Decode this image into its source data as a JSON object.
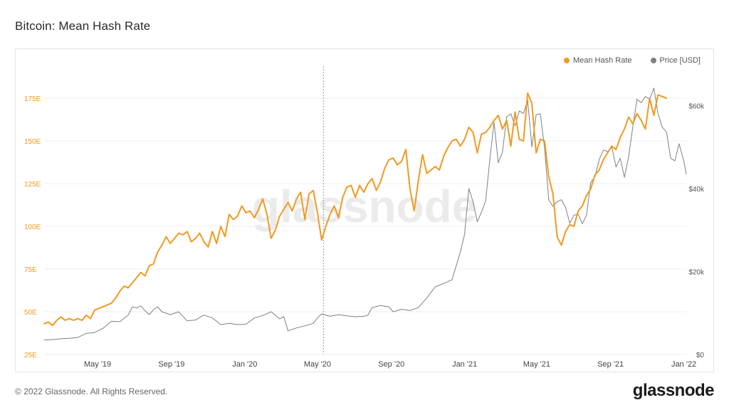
{
  "title": "Bitcoin: Mean Hash Rate",
  "footer": {
    "copyright": "© 2022 Glassnode. All Rights Reserved.",
    "logo": "glassnode"
  },
  "watermark": "glassnode",
  "colors": {
    "hash": "#f09a22",
    "price": "#808080",
    "grid": "#efefef",
    "left_axis": "#f09a22",
    "right_axis": "#555555"
  },
  "chart_data": {
    "type": "line",
    "title": "Bitcoin: Mean Hash Rate",
    "legend": {
      "position": "top-right"
    },
    "grid": true,
    "x_ticks": [
      "May '19",
      "Sep '19",
      "Jan '20",
      "May '20",
      "Sep '20",
      "Jan '21",
      "May '21",
      "Sep '21",
      "Jan '22"
    ],
    "left_axis": {
      "ticks": [
        "25E",
        "50E",
        "75E",
        "100E",
        "125E",
        "150E",
        "175E"
      ],
      "range": [
        25,
        195
      ]
    },
    "right_axis": {
      "ticks": [
        "$0",
        "$20k",
        "$40k",
        "$60k"
      ],
      "range": [
        0,
        70000
      ]
    },
    "marker_line_date": "2020-05-11",
    "series": [
      {
        "name": "Mean Hash Rate",
        "axis": "left",
        "color": "#f09a22",
        "points": [
          [
            "2019-02-01",
            43
          ],
          [
            "2019-02-08",
            44
          ],
          [
            "2019-02-15",
            42
          ],
          [
            "2019-02-22",
            45
          ],
          [
            "2019-03-01",
            47
          ],
          [
            "2019-03-08",
            45
          ],
          [
            "2019-03-15",
            46
          ],
          [
            "2019-03-22",
            45
          ],
          [
            "2019-03-29",
            46
          ],
          [
            "2019-04-05",
            45
          ],
          [
            "2019-04-12",
            48
          ],
          [
            "2019-04-19",
            46
          ],
          [
            "2019-04-26",
            51
          ],
          [
            "2019-05-03",
            52
          ],
          [
            "2019-05-10",
            53
          ],
          [
            "2019-05-17",
            54
          ],
          [
            "2019-05-24",
            55
          ],
          [
            "2019-05-31",
            58
          ],
          [
            "2019-06-07",
            62
          ],
          [
            "2019-06-14",
            65
          ],
          [
            "2019-06-21",
            64
          ],
          [
            "2019-06-28",
            67
          ],
          [
            "2019-07-05",
            70
          ],
          [
            "2019-07-12",
            73
          ],
          [
            "2019-07-19",
            71
          ],
          [
            "2019-07-26",
            77
          ],
          [
            "2019-08-02",
            78
          ],
          [
            "2019-08-09",
            85
          ],
          [
            "2019-08-16",
            89
          ],
          [
            "2019-08-23",
            94
          ],
          [
            "2019-08-30",
            90
          ],
          [
            "2019-09-06",
            93
          ],
          [
            "2019-09-13",
            96
          ],
          [
            "2019-09-20",
            95
          ],
          [
            "2019-09-27",
            97
          ],
          [
            "2019-10-04",
            91
          ],
          [
            "2019-10-11",
            93
          ],
          [
            "2019-10-18",
            96
          ],
          [
            "2019-10-25",
            91
          ],
          [
            "2019-11-01",
            88
          ],
          [
            "2019-11-08",
            97
          ],
          [
            "2019-11-15",
            90
          ],
          [
            "2019-11-22",
            100
          ],
          [
            "2019-11-29",
            94
          ],
          [
            "2019-12-06",
            107
          ],
          [
            "2019-12-13",
            104
          ],
          [
            "2019-12-20",
            106
          ],
          [
            "2019-12-27",
            112
          ],
          [
            "2020-01-03",
            108
          ],
          [
            "2020-01-10",
            109
          ],
          [
            "2020-01-17",
            105
          ],
          [
            "2020-01-24",
            110
          ],
          [
            "2020-01-31",
            116
          ],
          [
            "2020-02-07",
            107
          ],
          [
            "2020-02-14",
            93
          ],
          [
            "2020-02-21",
            98
          ],
          [
            "2020-02-28",
            106
          ],
          [
            "2020-03-06",
            110
          ],
          [
            "2020-03-13",
            114
          ],
          [
            "2020-03-20",
            109
          ],
          [
            "2020-03-27",
            116
          ],
          [
            "2020-04-03",
            120
          ],
          [
            "2020-04-10",
            104
          ],
          [
            "2020-04-17",
            119
          ],
          [
            "2020-04-24",
            121
          ],
          [
            "2020-05-01",
            108
          ],
          [
            "2020-05-08",
            92
          ],
          [
            "2020-05-15",
            100
          ],
          [
            "2020-05-22",
            107
          ],
          [
            "2020-05-29",
            112
          ],
          [
            "2020-06-05",
            105
          ],
          [
            "2020-06-12",
            117
          ],
          [
            "2020-06-19",
            123
          ],
          [
            "2020-06-26",
            124
          ],
          [
            "2020-07-03",
            117
          ],
          [
            "2020-07-10",
            124
          ],
          [
            "2020-07-17",
            120
          ],
          [
            "2020-07-24",
            125
          ],
          [
            "2020-07-31",
            128
          ],
          [
            "2020-08-07",
            121
          ],
          [
            "2020-08-14",
            126
          ],
          [
            "2020-08-21",
            134
          ],
          [
            "2020-08-28",
            139
          ],
          [
            "2020-09-04",
            140
          ],
          [
            "2020-09-11",
            136
          ],
          [
            "2020-09-18",
            138
          ],
          [
            "2020-09-25",
            145
          ],
          [
            "2020-10-02",
            122
          ],
          [
            "2020-10-09",
            109
          ],
          [
            "2020-10-16",
            127
          ],
          [
            "2020-10-23",
            142
          ],
          [
            "2020-10-30",
            131
          ],
          [
            "2020-11-06",
            133
          ],
          [
            "2020-11-13",
            135
          ],
          [
            "2020-11-20",
            133
          ],
          [
            "2020-11-27",
            141
          ],
          [
            "2020-12-04",
            146
          ],
          [
            "2020-12-11",
            150
          ],
          [
            "2020-12-18",
            151
          ],
          [
            "2020-12-25",
            147
          ],
          [
            "2021-01-01",
            151
          ],
          [
            "2021-01-08",
            158
          ],
          [
            "2021-01-15",
            155
          ],
          [
            "2021-01-22",
            143
          ],
          [
            "2021-01-29",
            154
          ],
          [
            "2021-02-05",
            155
          ],
          [
            "2021-02-12",
            158
          ],
          [
            "2021-02-19",
            162
          ],
          [
            "2021-02-26",
            165
          ],
          [
            "2021-03-05",
            157
          ],
          [
            "2021-03-12",
            162
          ],
          [
            "2021-03-19",
            147
          ],
          [
            "2021-03-26",
            167
          ],
          [
            "2021-04-02",
            151
          ],
          [
            "2021-04-09",
            150
          ],
          [
            "2021-04-16",
            178
          ],
          [
            "2021-04-23",
            172
          ],
          [
            "2021-04-30",
            143
          ],
          [
            "2021-05-07",
            151
          ],
          [
            "2021-05-14",
            150
          ],
          [
            "2021-05-21",
            129
          ],
          [
            "2021-05-28",
            119
          ],
          [
            "2021-06-04",
            94
          ],
          [
            "2021-06-11",
            89
          ],
          [
            "2021-06-18",
            97
          ],
          [
            "2021-06-25",
            101
          ],
          [
            "2021-07-02",
            100
          ],
          [
            "2021-07-09",
            109
          ],
          [
            "2021-07-16",
            112
          ],
          [
            "2021-07-23",
            118
          ],
          [
            "2021-07-30",
            122
          ],
          [
            "2021-08-06",
            130
          ],
          [
            "2021-08-13",
            133
          ],
          [
            "2021-08-20",
            139
          ],
          [
            "2021-08-27",
            143
          ],
          [
            "2021-09-03",
            147
          ],
          [
            "2021-09-10",
            145
          ],
          [
            "2021-09-17",
            152
          ],
          [
            "2021-09-24",
            157
          ],
          [
            "2021-10-01",
            164
          ],
          [
            "2021-10-08",
            160
          ],
          [
            "2021-10-15",
            166
          ],
          [
            "2021-10-22",
            162
          ],
          [
            "2021-10-29",
            157
          ],
          [
            "2021-11-05",
            175
          ],
          [
            "2021-11-12",
            165
          ],
          [
            "2021-11-19",
            177
          ],
          [
            "2021-11-26",
            176
          ],
          [
            "2021-12-03",
            175
          ]
        ]
      },
      {
        "name": "Price [USD]",
        "axis": "right",
        "color": "#808080",
        "points": [
          [
            "2019-02-01",
            3500
          ],
          [
            "2019-02-15",
            3600
          ],
          [
            "2019-03-01",
            3800
          ],
          [
            "2019-03-15",
            3900
          ],
          [
            "2019-03-29",
            4100
          ],
          [
            "2019-04-12",
            5100
          ],
          [
            "2019-04-26",
            5300
          ],
          [
            "2019-05-10",
            6300
          ],
          [
            "2019-05-24",
            8000
          ],
          [
            "2019-06-07",
            7900
          ],
          [
            "2019-06-21",
            9500
          ],
          [
            "2019-06-28",
            11500
          ],
          [
            "2019-07-05",
            11200
          ],
          [
            "2019-07-12",
            11700
          ],
          [
            "2019-07-19",
            10500
          ],
          [
            "2019-07-26",
            9600
          ],
          [
            "2019-08-02",
            10800
          ],
          [
            "2019-08-09",
            11500
          ],
          [
            "2019-08-16",
            10300
          ],
          [
            "2019-08-30",
            9600
          ],
          [
            "2019-09-13",
            10300
          ],
          [
            "2019-09-27",
            8100
          ],
          [
            "2019-10-11",
            8300
          ],
          [
            "2019-10-25",
            9500
          ],
          [
            "2019-11-08",
            8800
          ],
          [
            "2019-11-22",
            7200
          ],
          [
            "2019-12-06",
            7500
          ],
          [
            "2019-12-20",
            7200
          ],
          [
            "2020-01-03",
            7300
          ],
          [
            "2020-01-17",
            8800
          ],
          [
            "2020-01-31",
            9400
          ],
          [
            "2020-02-14",
            10300
          ],
          [
            "2020-02-28",
            8600
          ],
          [
            "2020-03-06",
            9100
          ],
          [
            "2020-03-13",
            5700
          ],
          [
            "2020-03-27",
            6400
          ],
          [
            "2020-04-10",
            6900
          ],
          [
            "2020-04-24",
            7500
          ],
          [
            "2020-05-01",
            8800
          ],
          [
            "2020-05-08",
            9800
          ],
          [
            "2020-05-22",
            9200
          ],
          [
            "2020-06-05",
            9600
          ],
          [
            "2020-06-19",
            9300
          ],
          [
            "2020-07-03",
            9100
          ],
          [
            "2020-07-17",
            9200
          ],
          [
            "2020-07-24",
            9500
          ],
          [
            "2020-07-31",
            11300
          ],
          [
            "2020-08-14",
            11800
          ],
          [
            "2020-08-28",
            11500
          ],
          [
            "2020-09-04",
            10300
          ],
          [
            "2020-09-18",
            10900
          ],
          [
            "2020-10-02",
            10600
          ],
          [
            "2020-10-16",
            11300
          ],
          [
            "2020-10-30",
            13600
          ],
          [
            "2020-11-13",
            16300
          ],
          [
            "2020-11-27",
            17100
          ],
          [
            "2020-12-11",
            18000
          ],
          [
            "2020-12-25",
            24700
          ],
          [
            "2021-01-01",
            29000
          ],
          [
            "2021-01-08",
            40000
          ],
          [
            "2021-01-15",
            36800
          ],
          [
            "2021-01-22",
            32000
          ],
          [
            "2021-01-29",
            34300
          ],
          [
            "2021-02-05",
            37000
          ],
          [
            "2021-02-12",
            47100
          ],
          [
            "2021-02-19",
            55900
          ],
          [
            "2021-02-26",
            46200
          ],
          [
            "2021-03-05",
            48800
          ],
          [
            "2021-03-12",
            57300
          ],
          [
            "2021-03-19",
            58000
          ],
          [
            "2021-03-26",
            55100
          ],
          [
            "2021-04-02",
            58700
          ],
          [
            "2021-04-09",
            58100
          ],
          [
            "2021-04-16",
            61300
          ],
          [
            "2021-04-23",
            50000
          ],
          [
            "2021-04-30",
            57800
          ],
          [
            "2021-05-07",
            58000
          ],
          [
            "2021-05-14",
            49800
          ],
          [
            "2021-05-21",
            37300
          ],
          [
            "2021-05-28",
            35700
          ],
          [
            "2021-06-04",
            36800
          ],
          [
            "2021-06-11",
            37300
          ],
          [
            "2021-06-18",
            35500
          ],
          [
            "2021-06-25",
            31600
          ],
          [
            "2021-07-02",
            33600
          ],
          [
            "2021-07-09",
            33800
          ],
          [
            "2021-07-16",
            31500
          ],
          [
            "2021-07-23",
            33600
          ],
          [
            "2021-07-30",
            41500
          ],
          [
            "2021-08-06",
            42800
          ],
          [
            "2021-08-13",
            47000
          ],
          [
            "2021-08-20",
            49300
          ],
          [
            "2021-08-27",
            48900
          ],
          [
            "2021-09-03",
            50000
          ],
          [
            "2021-09-10",
            45200
          ],
          [
            "2021-09-17",
            47300
          ],
          [
            "2021-09-24",
            42700
          ],
          [
            "2021-10-01",
            47700
          ],
          [
            "2021-10-08",
            54900
          ],
          [
            "2021-10-15",
            61500
          ],
          [
            "2021-10-22",
            60700
          ],
          [
            "2021-10-29",
            62200
          ],
          [
            "2021-11-05",
            61500
          ],
          [
            "2021-11-12",
            64200
          ],
          [
            "2021-11-19",
            58100
          ],
          [
            "2021-11-26",
            54800
          ],
          [
            "2021-12-03",
            53600
          ],
          [
            "2021-12-10",
            47300
          ],
          [
            "2021-12-17",
            46700
          ],
          [
            "2021-12-24",
            50800
          ],
          [
            "2022-01-01",
            46500
          ],
          [
            "2022-01-05",
            43500
          ]
        ]
      }
    ]
  }
}
